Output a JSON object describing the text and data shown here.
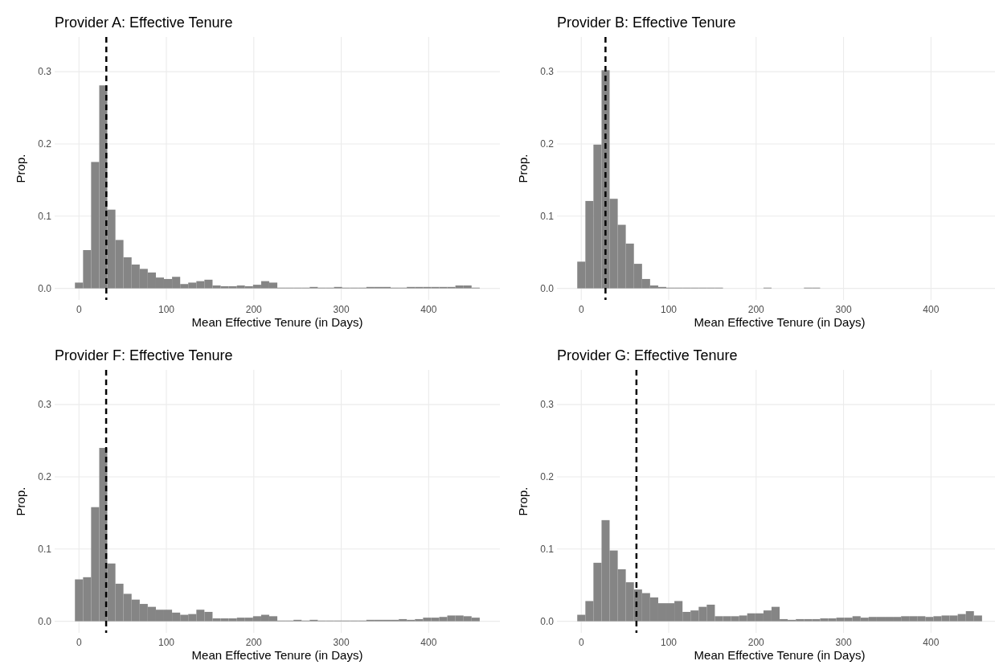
{
  "chart_data": [
    {
      "type": "histogram",
      "title": "Provider A: Effective Tenure",
      "xlabel": "Mean Effective Tenure (in Days)",
      "ylabel": "Prop.",
      "color": "#858585",
      "grid": true,
      "bins": [
        -4.6,
        4.7,
        13.9,
        23.2,
        32.4,
        41.7,
        50.9,
        60.2,
        69.5,
        78.7,
        88.0,
        97.2,
        106.5,
        115.8,
        125.0,
        134.3,
        143.5,
        152.8,
        162.1,
        171.3,
        180.6,
        189.8,
        199.1,
        208.4,
        217.6,
        226.9,
        236.1,
        245.4,
        254.7,
        263.9,
        273.2,
        282.4,
        291.7,
        301.0,
        310.2,
        319.5,
        328.7,
        338.0,
        347.3,
        356.5,
        365.8,
        375.0,
        384.3,
        393.6,
        402.8,
        412.1,
        421.3,
        430.6,
        439.9,
        449.1,
        458.4
      ],
      "values": [
        0.008,
        0.053,
        0.175,
        0.281,
        0.109,
        0.067,
        0.043,
        0.033,
        0.027,
        0.022,
        0.015,
        0.013,
        0.016,
        0.006,
        0.008,
        0.01,
        0.012,
        0.004,
        0.003,
        0.003,
        0.004,
        0.003,
        0.005,
        0.01,
        0.008,
        0.001,
        0.001,
        0.001,
        0.001,
        0.002,
        0.001,
        0.001,
        0.002,
        0.001,
        0.001,
        0.001,
        0.002,
        0.002,
        0.002,
        0.001,
        0.001,
        0.002,
        0.002,
        0.002,
        0.002,
        0.002,
        0.002,
        0.004,
        0.004,
        0.001
      ],
      "xlim": [
        -27.8,
        481.5
      ],
      "xticks": [
        0,
        100,
        200,
        300,
        400
      ],
      "ylim": [
        -0.016,
        0.348
      ],
      "yticks": [
        {
          "value": 0,
          "label": "0.0"
        },
        {
          "value": 0.1,
          "label": "0.1"
        },
        {
          "value": 0.2,
          "label": "0.2"
        },
        {
          "value": 0.3,
          "label": "0.3"
        }
      ],
      "ref_lines": [
        {
          "axis": "x",
          "value": 31.3,
          "color": "#000000",
          "line_style": "dashed"
        }
      ]
    },
    {
      "type": "histogram",
      "title": "Provider B: Effective Tenure",
      "xlabel": "Mean Effective Tenure (in Days)",
      "ylabel": "Prop.",
      "color": "#858585",
      "grid": true,
      "bins": [
        -4.6,
        4.7,
        13.9,
        23.2,
        32.4,
        41.7,
        50.9,
        60.2,
        69.5,
        78.7,
        88.0,
        97.2,
        106.5,
        115.8,
        125.0,
        134.3,
        143.5,
        152.8,
        162.1,
        171.3,
        180.6,
        189.8,
        199.1,
        208.4,
        217.6,
        226.9,
        236.1,
        245.4,
        254.7,
        263.9,
        273.2,
        282.4,
        291.7,
        301.0,
        310.2,
        319.5,
        328.7,
        338.0,
        347.3,
        356.5,
        365.8,
        375.0,
        384.3,
        393.6,
        402.8,
        412.1,
        421.3,
        430.6,
        439.9,
        449.1,
        458.4
      ],
      "values": [
        0.037,
        0.121,
        0.199,
        0.302,
        0.124,
        0.088,
        0.062,
        0.034,
        0.013,
        0.004,
        0.002,
        0.001,
        0.001,
        0.001,
        0.001,
        0.001,
        0.001,
        0.001,
        0,
        0,
        0,
        0,
        0,
        0.001,
        0,
        0,
        0,
        0,
        0.001,
        0.001,
        0,
        0,
        0,
        0,
        0,
        0,
        0,
        0,
        0,
        0,
        0,
        0,
        0,
        0,
        0,
        0,
        0,
        0,
        0,
        0
      ],
      "xlim": [
        -27.8,
        481.5
      ],
      "xticks": [
        0,
        100,
        200,
        300,
        400
      ],
      "ylim": [
        -0.016,
        0.348
      ],
      "yticks": [
        {
          "value": 0,
          "label": "0.0"
        },
        {
          "value": 0.1,
          "label": "0.1"
        },
        {
          "value": 0.2,
          "label": "0.2"
        },
        {
          "value": 0.3,
          "label": "0.3"
        }
      ],
      "ref_lines": [
        {
          "axis": "x",
          "value": 27.7,
          "color": "#000000",
          "line_style": "dashed"
        }
      ]
    },
    {
      "type": "histogram",
      "title": "Provider F: Effective Tenure",
      "xlabel": "Mean Effective Tenure (in Days)",
      "ylabel": "Prop.",
      "color": "#858585",
      "grid": true,
      "bins": [
        -4.6,
        4.7,
        13.9,
        23.2,
        32.4,
        41.7,
        50.9,
        60.2,
        69.5,
        78.7,
        88.0,
        97.2,
        106.5,
        115.8,
        125.0,
        134.3,
        143.5,
        152.8,
        162.1,
        171.3,
        180.6,
        189.8,
        199.1,
        208.4,
        217.6,
        226.9,
        236.1,
        245.4,
        254.7,
        263.9,
        273.2,
        282.4,
        291.7,
        301.0,
        310.2,
        319.5,
        328.7,
        338.0,
        347.3,
        356.5,
        365.8,
        375.0,
        384.3,
        393.6,
        402.8,
        412.1,
        421.3,
        430.6,
        439.9,
        449.1,
        458.4
      ],
      "values": [
        0.058,
        0.061,
        0.158,
        0.24,
        0.08,
        0.052,
        0.038,
        0.03,
        0.024,
        0.02,
        0.016,
        0.016,
        0.012,
        0.009,
        0.01,
        0.016,
        0.013,
        0.004,
        0.004,
        0.004,
        0.005,
        0.005,
        0.007,
        0.009,
        0.007,
        0.001,
        0.001,
        0.002,
        0.001,
        0.002,
        0.001,
        0.001,
        0.001,
        0.001,
        0.001,
        0.001,
        0.002,
        0.002,
        0.002,
        0.002,
        0.003,
        0.002,
        0.003,
        0.005,
        0.005,
        0.006,
        0.008,
        0.008,
        0.007,
        0.005
      ],
      "xlim": [
        -27.8,
        481.5
      ],
      "xticks": [
        0,
        100,
        200,
        300,
        400
      ],
      "ylim": [
        -0.016,
        0.348
      ],
      "yticks": [
        {
          "value": 0,
          "label": "0.0"
        },
        {
          "value": 0.1,
          "label": "0.1"
        },
        {
          "value": 0.2,
          "label": "0.2"
        },
        {
          "value": 0.3,
          "label": "0.3"
        }
      ],
      "ref_lines": [
        {
          "axis": "x",
          "value": 31.1,
          "color": "#000000",
          "line_style": "dashed"
        }
      ]
    },
    {
      "type": "histogram",
      "title": "Provider G: Effective Tenure",
      "xlabel": "Mean Effective Tenure (in Days)",
      "ylabel": "Prop.",
      "color": "#858585",
      "grid": true,
      "bins": [
        -4.6,
        4.7,
        13.9,
        23.2,
        32.4,
        41.7,
        50.9,
        60.2,
        69.5,
        78.7,
        88.0,
        97.2,
        106.5,
        115.8,
        125.0,
        134.3,
        143.5,
        152.8,
        162.1,
        171.3,
        180.6,
        189.8,
        199.1,
        208.4,
        217.6,
        226.9,
        236.1,
        245.4,
        254.7,
        263.9,
        273.2,
        282.4,
        291.7,
        301.0,
        310.2,
        319.5,
        328.7,
        338.0,
        347.3,
        356.5,
        365.8,
        375.0,
        384.3,
        393.6,
        402.8,
        412.1,
        421.3,
        430.6,
        439.9,
        449.1,
        458.4
      ],
      "values": [
        0.009,
        0.028,
        0.081,
        0.14,
        0.098,
        0.072,
        0.054,
        0.044,
        0.039,
        0.033,
        0.025,
        0.025,
        0.028,
        0.013,
        0.015,
        0.02,
        0.023,
        0.007,
        0.007,
        0.007,
        0.008,
        0.011,
        0.011,
        0.015,
        0.02,
        0.003,
        0.002,
        0.003,
        0.003,
        0.003,
        0.004,
        0.004,
        0.005,
        0.005,
        0.007,
        0.005,
        0.006,
        0.006,
        0.006,
        0.006,
        0.007,
        0.007,
        0.007,
        0.006,
        0.007,
        0.008,
        0.008,
        0.01,
        0.014,
        0.008
      ],
      "xlim": [
        -27.8,
        481.5
      ],
      "xticks": [
        0,
        100,
        200,
        300,
        400
      ],
      "ylim": [
        -0.016,
        0.348
      ],
      "yticks": [
        {
          "value": 0,
          "label": "0.0"
        },
        {
          "value": 0.1,
          "label": "0.1"
        },
        {
          "value": 0.2,
          "label": "0.2"
        },
        {
          "value": 0.3,
          "label": "0.3"
        }
      ],
      "ref_lines": [
        {
          "axis": "x",
          "value": 63.1,
          "color": "#000000",
          "line_style": "dashed"
        }
      ]
    }
  ]
}
